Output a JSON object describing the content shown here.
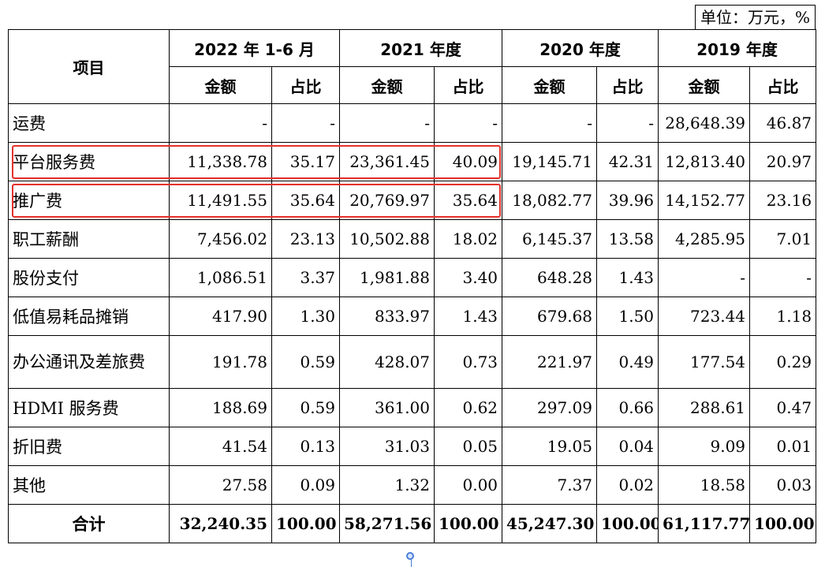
{
  "unit_label": "单位：万元，%",
  "header": {
    "item_label": "项目",
    "periods": [
      "2022 年 1-6 月",
      "2021 年度",
      "2020 年度",
      "2019 年度"
    ],
    "amount_label": "金额",
    "ratio_label": "占比"
  },
  "rows": [
    {
      "label": "运费",
      "values": [
        "-",
        "-",
        "-",
        "-",
        "-",
        "-",
        "28,648.39",
        "46.87"
      ]
    },
    {
      "label": "平台服务费",
      "values": [
        "11,338.78",
        "35.17",
        "23,361.45",
        "40.09",
        "19,145.71",
        "42.31",
        "12,813.40",
        "20.97"
      ]
    },
    {
      "label": "推广费",
      "values": [
        "11,491.55",
        "35.64",
        "20,769.97",
        "35.64",
        "18,082.77",
        "39.96",
        "14,152.77",
        "23.16"
      ]
    },
    {
      "label": "职工薪酬",
      "values": [
        "7,456.02",
        "23.13",
        "10,502.88",
        "18.02",
        "6,145.37",
        "13.58",
        "4,285.95",
        "7.01"
      ]
    },
    {
      "label": "股份支付",
      "values": [
        "1,086.51",
        "3.37",
        "1,981.88",
        "3.40",
        "648.28",
        "1.43",
        "-",
        "-"
      ]
    },
    {
      "label": "低值易耗品摊销",
      "values": [
        "417.90",
        "1.30",
        "833.97",
        "1.43",
        "679.68",
        "1.50",
        "723.44",
        "1.18"
      ]
    },
    {
      "label": "办公通讯及差旅费",
      "values": [
        "191.78",
        "0.59",
        "428.07",
        "0.73",
        "221.97",
        "0.49",
        "177.54",
        "0.29"
      ]
    },
    {
      "label": "HDMI 服务费",
      "values": [
        "188.69",
        "0.59",
        "361.00",
        "0.62",
        "297.09",
        "0.66",
        "288.61",
        "0.47"
      ]
    },
    {
      "label": "折旧费",
      "values": [
        "41.54",
        "0.13",
        "31.03",
        "0.05",
        "19.05",
        "0.04",
        "9.09",
        "0.01"
      ]
    },
    {
      "label": "其他",
      "values": [
        "27.58",
        "0.09",
        "1.32",
        "0.00",
        "7.37",
        "0.02",
        "18.58",
        "0.03"
      ]
    },
    {
      "label": "合计",
      "values": [
        "32,240.35",
        "100.00",
        "58,271.56",
        "100.00",
        "45,247.30",
        "100.00",
        "61,117.77",
        "100.00"
      ]
    }
  ],
  "colors": {
    "highlight": "#e5302b",
    "marker": "#4a7fd8"
  }
}
